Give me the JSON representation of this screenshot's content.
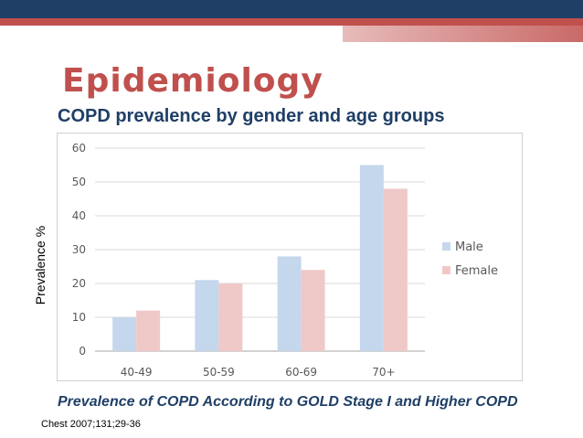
{
  "slide": {
    "title": "Epidemiology",
    "subtitle": "COPD prevalence by gender and age groups",
    "caption": "Prevalence of COPD According to GOLD Stage I and Higher COPD",
    "citation": "Chest 2007;131;29-36"
  },
  "colors": {
    "navy": "#1f3f66",
    "accent_red": "#c0504d",
    "male": "#c5d7ec",
    "female": "#efc9c8"
  },
  "chart_data": {
    "type": "bar",
    "title": "",
    "xlabel": "",
    "ylabel": "Prevalence %",
    "categories": [
      "40-49",
      "50-59",
      "60-69",
      "70+"
    ],
    "series": [
      {
        "name": "Male",
        "values": [
          10,
          21,
          28,
          55
        ]
      },
      {
        "name": "Female",
        "values": [
          12,
          20,
          24,
          48
        ]
      }
    ],
    "ylim": [
      0,
      60
    ],
    "yticks": [
      0,
      10,
      20,
      30,
      40,
      50,
      60
    ],
    "grid": true,
    "legend": "right"
  }
}
